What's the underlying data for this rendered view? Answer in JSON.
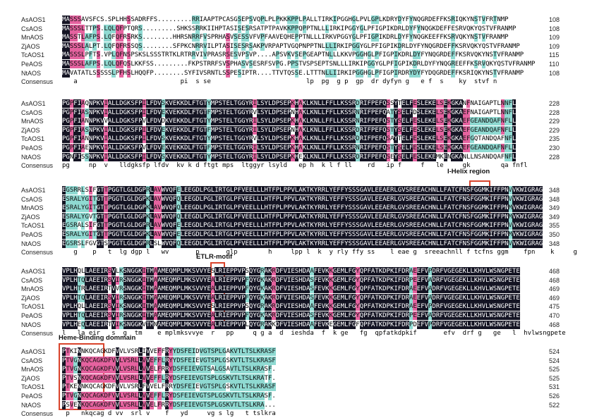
{
  "annotations": {
    "i_helix": "I-Helix region",
    "etlr": "ETLR-motif",
    "heme": "Heme-Binding dommain"
  },
  "consensus_label": "Consensus",
  "blocks": [
    {
      "rows": [
        {
          "name": "AsAOS1",
          "seq": "MASSSAVSFCS.SPLHHSSADRFFS.........RRIAAPTPCASGSEPSVQPLPLPKKKPPLPALLTIRKIPGGHGLPVLGPLKDRYDYFYNQGRDEFFKSRIQKYNSTVFRTNMP",
          "end": "108"
        },
        {
          "name": "CsAOS",
          "seq": "MASSSLTTPS.LQLQFPTQRS.........SHKSSRRKIIHPTASISESRSATPTPAVKKPPQPPTNLLLIRKIPGGYGLPFIGPIKDRLDYFYNQGKDEFFESRVQKYQSTVFRANMP",
          "end": "108"
        },
        {
          "name": "MnAOS",
          "seq": "MASSTLAFPS.LQFQFRSRKS........HHRSNRRFVSPRHASVSESSVFVPFAAVEQHEPPTNLLLIRKVPGGYGLPFIGPIKDRLDYFYNQGKEEFFKSRVQKYNSTVFRANMP",
          "end": "109"
        },
        {
          "name": "ZjAOS",
          "seq": "MASSSLALPT.LQFQFRSSQS........SFPKCNRRVILPTASISESRSAKPVRPAPTVGQPNPPTNLLLIRKIPGGYGLPFIGPIKDRLDYFYNQGRDEFFKSRVQKYQSTVFRANMP",
          "end": "109"
        },
        {
          "name": "TcAOS1",
          "seq": "MASSSLPFTS.VPLQFNSPSKSLSSSTRTKLRTRRVIVPRASRSESVPSVP....APSVKVSEPGEAPTNLLLKKVPGGHGLPFIGPIKDRLDYFYNQGRDEFFKSRVQKYNSTVFRANMP",
          "end": "115"
        },
        {
          "name": "PeAOS",
          "seq": "MASSSLAFPS.LQLQFQSLKKFSS.........FKPSTRRFSVSPHASVSESRFSVPG.PPSTVSPSEPTSNLLLIRKIPGGYGLPFIGPIKDRLDYFYNQGREEFFKSRVQKYQSTVFRANMP",
          "end": "110"
        },
        {
          "name": "NtAOS",
          "seq": "MAVATATLSSSSSLPFHSLHQQFP........SYFIVSRNTLSSPESIPTR....TTVTQSSE.LTTTNLLIIRKIPGGHGLPFIGPIRDRYDYFYDQGRDEFFKSRIQKYNSTVFRANMP",
          "end": "108"
        }
      ],
      "consensus": "   a                           pi  s se                         lp  pg  g p  gp  dr dyfyn g   e f  s    ky  stvf n"
    },
    {
      "rows": [
        {
          "name": "AsAOS1",
          "seq": "PGPFIAQNPKVIALLDGKSFPILFDVSKVEKKDLFTGTYMPSTELTGGYRILSYLDPSEPKHAKLKNLLFFLLKSSRDRIFPEFQSSYTELFESLEKELSEKGKANFNAIGAPTLNNFL",
          "end": "228"
        },
        {
          "name": "CsAOS",
          "seq": "PGPFIASNPKVIALLDGKSFPILFDVEKVEKKDLFTGTFMPSTELTGGYRVLSYLDPSEPNHAKLKNLLFFLLKSSRNRIFPEFQATYSELFDSLEKELSEKGKAEFNAIGAPTLNNFL",
          "end": "228"
        },
        {
          "name": "MnAOS",
          "seq": "PGPFIANNPKVVALLDGKSFPVLFDVDKVEKKDLFTGTYMPSTELTGGYRILSYLDPSEPKHAKLKNLLFFLLKSSRNRIFPEFQSTYSELFESLEKELSEKGKAEFGEANDQAFNFLL",
          "end": "229"
        },
        {
          "name": "ZjAOS",
          "seq": "PGPFIASNPKVIALLDGKSFPILFDVEKVEKKDLFTGTFMPSTELTGGYRILSYLDPSEPNHAKLKNLLFFLLKSSRDRIFPEFQSTYSELFESLEKELSEKGKAEFGEANDQAFNFLL",
          "end": "229"
        },
        {
          "name": "TcAOS1",
          "seq": "PGPFIANNPKVIALLDGKSFPILFDVSKVEKKDLFTGTYMPSTELTGGYRVLSYLDPSEPKHAKLKNLLFFLLKSSRDRIFPEFQSAYTELFESLEKELSEKGKAEFGQTANDQAFNFL",
          "end": "235"
        },
        {
          "name": "PeAOS",
          "seq": "PGPFIAENPKVIALLDGKSFPVLFDVEKVEKKDLFTGTFMPSTELTGGYRILSYLDPSEPKHAKLKNLLFFLLKSSRNRIFPEFQSTYSELFESLEKELSEKGKAEFGEANDQAFNFLL",
          "end": "230"
        },
        {
          "name": "NtAOS",
          "seq": "PGNFISSNPKVIALLDGKSFPILFDVSKVEKKDLFTGTYMPSTELTGGYRILSYLDPSEPKHEKLKNLLFFLLKSSRDRIFPEFQSEYSELFESLEKEMKENGKANLLNSANDQAFNFL",
          "end": "228"
        }
      ],
      "consensus": "pg     np  v   lldgksfp lfdv  kv k d ftgt mps  ltggyr lsyld   ep h  k l f ll    rd   ip f     f   le     gk        qa fnfl"
    },
    {
      "rows": [
        {
          "name": "AsAOS1",
          "seq": "EGSRRLSIFGTTPGGTLGLDGPRLAVWVQFELEEGDLPGLIRTGLPFVEELLLHTFPLPPVLAKTKYRRLYEFFYSSSGAVLEEAERLGVSREEACHNLLFATCFNSFGGMKIFFPNVVKWIGRAG",
          "end": "348"
        },
        {
          "name": "CsAOS",
          "seq": "ESRALYGITGTTPGGTLGLDGPKLAVWVQFQLEEGDLPGLIRTGLPFVEELLLHTFPLPPVLAKTKYRRLYEFFYSSSGAVLEEAERLGVSREEACHNLLFATCFNSFGGMKIFFPNVVKWIGRAG",
          "end": "348"
        },
        {
          "name": "MnAOS",
          "seq": "ESRALYGITGTTPGGTLGLDGPKLAVWVQFQLEEGDLPGLIRTGLPFVEELLLHTFPLPPVLAKTKYRRLYEFFYSSSGAVLEEAERLGVSREEACHNLLFATCFNSFGGMKIFFPNMVKWIGRAG",
          "end": "349"
        },
        {
          "name": "ZjAOS",
          "seq": "ESRALYGVTGTTPGGTLGLDGPKLAVWVQFQLEEGDLPGLIRTGLPFVEELLLHTFPLPPVLAKTKYRRLYEFFYSSSGAVLEEAERLGVSREEACHNLLFATCFNSFGGMKIFFPNMVKWIGRAG",
          "end": "349"
        },
        {
          "name": "TcAOS1",
          "seq": "EGSRALSIFGTTPGGTLGLDGPRLAVWVQFELEEGDLPGLIRTGLPFVEELLLHTFPLPPVLAKTKYRRLYEFFYSSSGAVLEEAERLGVSREEACHNLLFATCFNSFGGMKIFFPNVVKWIGRAG",
          "end": "355"
        },
        {
          "name": "PeAOS",
          "seq": "ESRALYGITGTTPGGTLGLDGPKLAVWVQFELEEGDLPGLIRTGLPFVEELLLHTFPLPPVLAKTKYRRLYEFFYSSSGAVLEEAERLGVSREEACHNLLFATCFNSFGGMKIFFPNMVKWIGRAG",
          "end": "350"
        },
        {
          "name": "NtAOS",
          "seq": "EGSRSLFGVGTSPGGTLGLDGPRLSLWVQFQLEEGDLPGLIRTGLPFVEELLLHTFPLPPVLAKTKYRRLYEFFYSSSGAVLEEAERLGVSREEACHNLLFATCFNSFGGMKIFFPNVVKWIGRAG",
          "end": "348"
        }
      ],
      "consensus": "   g    p   t  lg dgp l   wv       p       glp        h     lpp l  k  y rly ffy ss    l eae g  sreeachnll f tcfns ggm    fpn    k     g"
    },
    {
      "rows": [
        {
          "name": "AsAOS1",
          "seq": "VPLHQLLAEEIRSVLKSNGGKITMAAMEQMPLMKSVVYESLRIEPPVPSQYGRAKRDFVIESHDAAFEVKKGEMLFGYQPFATKDPKIFDRAEEFVPDRFVGEGEKLLKHVLWSNGPETE",
          "end": "468"
        },
        {
          "name": "CsAOS",
          "seq": "VPLHTQLAEEIRSVIRSNGGKITMAAMEQMPLMKSVVYEALRIEPPVPFQYGKAKRDFVIESHDASFEVKKGEMLFGYQPFATKDPKIFDRPEEFVADRFVGEGEKLLKHVLWSNGPETE",
          "end": "468"
        },
        {
          "name": "MnAOS",
          "seq": "VPLHTRLAEEIRTVVRSNGGKITMAAMEQMPLMKSVVYEALRIEPPVPFQYGKAKRDFVIESHDASFEVKKGEMLFGYQPFATKDPKIFDRAEEFVADRFVGEGEKLLKHVLWSNGPETE",
          "end": "469"
        },
        {
          "name": "ZjAOS",
          "seq": "VPLHTQLAEEIRSVIRSNGGKITMAAMEQMPLMKSVVYEALRIEPPVPFQYGKAKRDFVIESHDASFEVKKGEMLFGYQPFATKDPKIFDRAEEFVADRFVGEGEKLLKHVLWSNGPETE",
          "end": "469"
        },
        {
          "name": "TcAOS1",
          "seq": "VPLHQLLAEEIRSVIKSNGGKITMAAMEQMPLMKSVVYESLRIEPPVPSQYGRAKRDFVIESHDAAFEVKKGEMLFGYQPFATKDPKIFDRAEEFVPDRFVGEGEKLLKHVLWSNGPETE",
          "end": "475"
        },
        {
          "name": "PeAOS",
          "seq": "VPLHTQLAEEIRSVIRSNGGKITMAAMEQMPLMKSVVYEALRIEPPVPFQYGKAKRDFVIESHDASFEVKKGEMLFGYQPFATKDPKIFDRPEEFVADRFVGEGEKLLKHVLWSNGPETE",
          "end": "470"
        },
        {
          "name": "NtAOS",
          "seq": "VPLHEQLAEEIRTVIKSNGGKVTMNAMEQMPLMKSVVYEALRIEPPVPLQYGRAKKDFVIESHDAAFEVKEGEMLFGFQPFATKDPKIFDRPDEFVPDRFVGEGEKLLKHVLWSNGPETE",
          "end": "468"
        }
      ],
      "consensus": "l   la eir   s  g  tm    e mplmksvvye  r   pp     q g a  d  ieshda  f  k ge   fg  qpfatkdpkif       efv  drf g   ge   l  hvlwsngpete"
    },
    {
      "rows": [
        {
          "name": "AsAOS1",
          "seq": "PTKINNKQCAGKDFVVLVSRLIVVEFFRYYDSFEIDVGTSPLGAKVTLTSLKRASF",
          "end": "524"
        },
        {
          "name": "CsAOS",
          "seq": "PTVGNKQCAGKDFVVLVSRLLVVEFFLRYYDSFEIEVGTSPLGSKVTLTSLKRASF",
          "end": "524"
        },
        {
          "name": "MnAOS",
          "seq": "PTVGNKQCAGKDFVVLVSRLLVVELFRRYDSFEIEVGTSALGSAVTLTSLKRASF.",
          "end": "525"
        },
        {
          "name": "ZjAOS",
          "seq": "PTVSNKQCAGKDFVVLVSRLLVVEFFLRYDSFEIEVGTSPLGSKVTLTSLKRATF.",
          "end": "525"
        },
        {
          "name": "TcAOS1",
          "seq": "PTKENNKQCAGKDFVVLVSRLFVVELFRRYDSFEIEVGTSPLGSKVTLTSLKRASF",
          "end": "531"
        },
        {
          "name": "PeAOS",
          "seq": "PTVGNKQCAGKDFVVLVSRLLVVEFFLRYDSFEIEVGTSPLGSKVTLTSLKRASF.",
          "end": "526"
        },
        {
          "name": "NtAOS",
          "seq": "PSVENKQCAGKDFVVLVSRLLVVELFRRYDSFEIEVGTSPLGSKVTLTSLKRA...",
          "end": "522"
        }
      ],
      "consensus": " p   nkqcag d vv  srl v    f   yd     vg s lg   t tslkra  "
    }
  ]
}
